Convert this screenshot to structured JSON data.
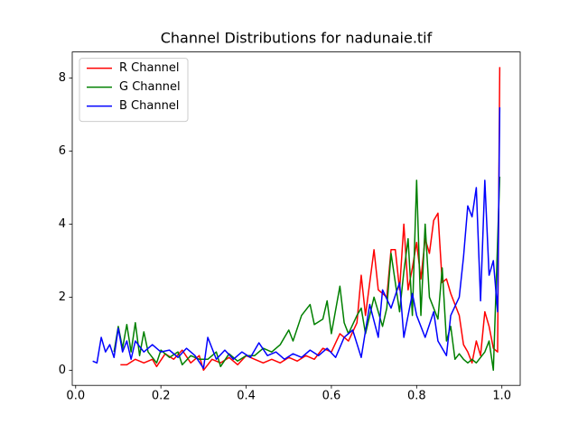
{
  "chart_data": {
    "type": "line",
    "title": "Channel Distributions for nadunaie.tif",
    "xlim": [
      -0.008,
      1.043
    ],
    "ylim": [
      -0.415,
      8.715
    ],
    "xticks": [
      {
        "value": 0,
        "label": "0.0"
      },
      0.2,
      0.4,
      0.6,
      0.8,
      {
        "value": 1,
        "label": "1.0"
      }
    ],
    "yticks": [
      0,
      2,
      4,
      6,
      8
    ],
    "legend": "upper left",
    "series": [
      {
        "name": "R Channel",
        "color": "#ff0000",
        "x": [
          0.105,
          0.12,
          0.14,
          0.16,
          0.18,
          0.19,
          0.21,
          0.23,
          0.25,
          0.27,
          0.29,
          0.3,
          0.32,
          0.34,
          0.36,
          0.38,
          0.4,
          0.42,
          0.44,
          0.46,
          0.48,
          0.5,
          0.52,
          0.54,
          0.56,
          0.58,
          0.6,
          0.62,
          0.64,
          0.66,
          0.67,
          0.68,
          0.7,
          0.71,
          0.73,
          0.74,
          0.75,
          0.76,
          0.77,
          0.78,
          0.79,
          0.8,
          0.81,
          0.82,
          0.83,
          0.84,
          0.85,
          0.86,
          0.87,
          0.88,
          0.9,
          0.91,
          0.92,
          0.93,
          0.94,
          0.95,
          0.96,
          0.97,
          0.98,
          0.99,
          0.995
        ],
        "values": [
          0.15,
          0.15,
          0.3,
          0.2,
          0.3,
          0.1,
          0.45,
          0.3,
          0.55,
          0.2,
          0.4,
          0.0,
          0.3,
          0.2,
          0.35,
          0.15,
          0.4,
          0.3,
          0.2,
          0.3,
          0.2,
          0.35,
          0.25,
          0.4,
          0.3,
          0.6,
          0.5,
          1.0,
          0.8,
          1.3,
          2.6,
          1.5,
          3.3,
          2.2,
          2.0,
          3.3,
          3.3,
          2.2,
          4.0,
          2.2,
          2.8,
          3.5,
          2.5,
          3.6,
          3.2,
          4.1,
          4.3,
          2.4,
          2.5,
          2.1,
          1.5,
          0.7,
          0.5,
          0.2,
          0.8,
          0.4,
          1.6,
          1.2,
          0.6,
          0.5,
          8.3
        ]
      },
      {
        "name": "G Channel",
        "color": "#008000",
        "x": [
          0.09,
          0.1,
          0.11,
          0.12,
          0.13,
          0.14,
          0.15,
          0.16,
          0.17,
          0.19,
          0.2,
          0.22,
          0.24,
          0.25,
          0.27,
          0.29,
          0.31,
          0.33,
          0.34,
          0.36,
          0.38,
          0.4,
          0.42,
          0.44,
          0.46,
          0.48,
          0.5,
          0.51,
          0.53,
          0.55,
          0.56,
          0.58,
          0.59,
          0.6,
          0.62,
          0.63,
          0.64,
          0.66,
          0.67,
          0.68,
          0.7,
          0.72,
          0.73,
          0.74,
          0.76,
          0.77,
          0.78,
          0.79,
          0.8,
          0.81,
          0.82,
          0.83,
          0.85,
          0.86,
          0.87,
          0.88,
          0.89,
          0.9,
          0.91,
          0.92,
          0.93,
          0.94,
          0.96,
          0.97,
          0.98,
          0.995
        ],
        "values": [
          0.5,
          1.2,
          0.6,
          1.25,
          0.5,
          1.3,
          0.4,
          1.05,
          0.5,
          0.2,
          0.55,
          0.35,
          0.5,
          0.15,
          0.4,
          0.3,
          0.3,
          0.5,
          0.1,
          0.45,
          0.25,
          0.4,
          0.4,
          0.6,
          0.5,
          0.7,
          1.1,
          0.8,
          1.5,
          1.8,
          1.25,
          1.4,
          1.9,
          1.0,
          2.3,
          1.3,
          1.0,
          1.5,
          1.7,
          1.0,
          2.0,
          1.2,
          1.7,
          3.2,
          1.6,
          2.7,
          3.6,
          1.5,
          5.2,
          1.5,
          4.0,
          2.0,
          1.4,
          2.8,
          0.8,
          1.2,
          0.3,
          0.45,
          0.3,
          0.2,
          0.3,
          0.2,
          0.5,
          0.8,
          0.0,
          5.3
        ]
      },
      {
        "name": "B Channel",
        "color": "#0000ff",
        "x": [
          0.04,
          0.05,
          0.06,
          0.07,
          0.08,
          0.09,
          0.1,
          0.11,
          0.12,
          0.13,
          0.14,
          0.16,
          0.18,
          0.2,
          0.22,
          0.24,
          0.26,
          0.28,
          0.3,
          0.31,
          0.33,
          0.35,
          0.37,
          0.39,
          0.41,
          0.43,
          0.45,
          0.47,
          0.49,
          0.51,
          0.53,
          0.55,
          0.57,
          0.59,
          0.61,
          0.63,
          0.65,
          0.67,
          0.69,
          0.71,
          0.72,
          0.74,
          0.76,
          0.77,
          0.79,
          0.8,
          0.82,
          0.84,
          0.85,
          0.87,
          0.88,
          0.9,
          0.91,
          0.92,
          0.93,
          0.94,
          0.95,
          0.96,
          0.97,
          0.98,
          0.99,
          0.995
        ],
        "values": [
          0.25,
          0.2,
          0.9,
          0.5,
          0.7,
          0.35,
          1.15,
          0.5,
          0.8,
          0.3,
          0.8,
          0.5,
          0.7,
          0.5,
          0.55,
          0.35,
          0.6,
          0.4,
          0.05,
          0.9,
          0.3,
          0.55,
          0.3,
          0.5,
          0.35,
          0.75,
          0.4,
          0.5,
          0.3,
          0.45,
          0.35,
          0.55,
          0.4,
          0.6,
          0.35,
          0.9,
          1.1,
          0.35,
          1.8,
          0.9,
          2.2,
          1.7,
          2.4,
          0.9,
          2.1,
          1.5,
          0.9,
          1.6,
          0.8,
          0.4,
          1.5,
          2.0,
          3.1,
          4.5,
          4.2,
          5.0,
          1.9,
          5.2,
          2.6,
          3.0,
          1.6,
          7.2
        ]
      }
    ]
  }
}
